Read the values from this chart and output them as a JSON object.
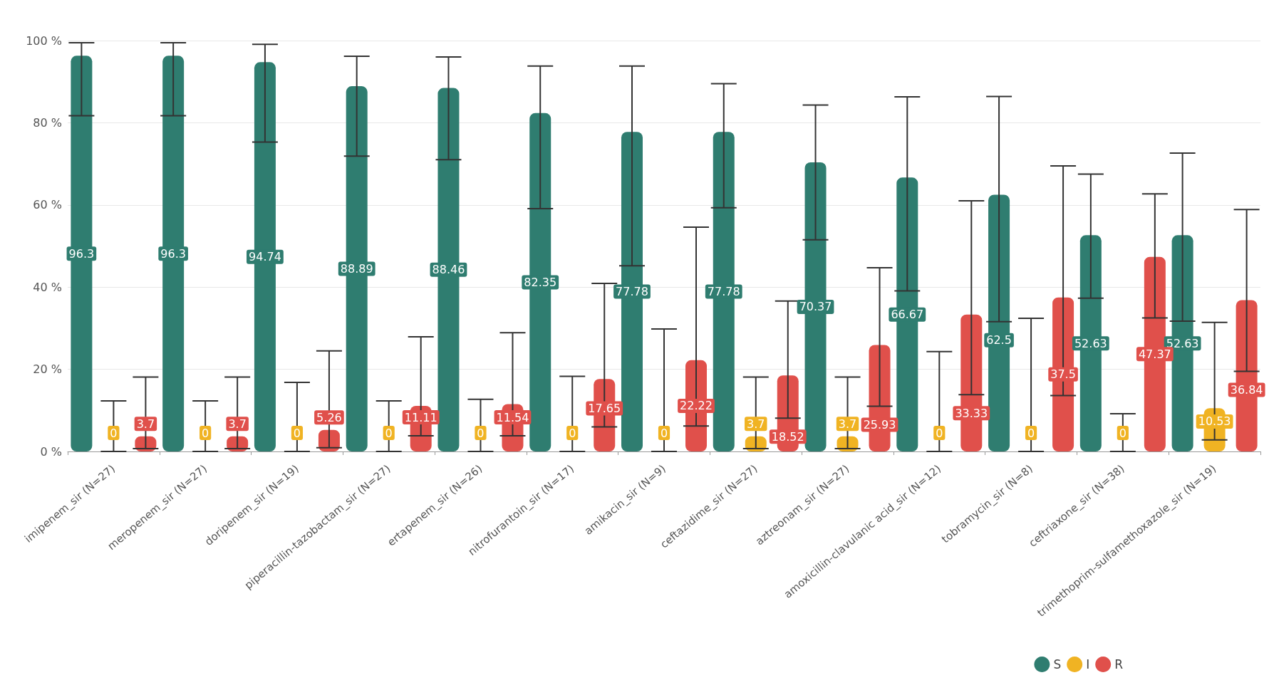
{
  "chart_data": {
    "type": "bar",
    "categories": [
      "imipenem_sir (N=27)",
      "meropenem_sir (N=27)",
      "doripenem_sir (N=19)",
      "piperacillin-tazobactam_sir (N=27)",
      "ertapenem_sir (N=26)",
      "nitrofurantoin_sir (N=17)",
      "amikacin_sir (N=9)",
      "ceftazidime_sir (N=27)",
      "aztreonam_sir (N=27)",
      "amoxicillin-clavulanic acid_sir (N=12)",
      "tobramycin_sir (N=8)",
      "ceftriaxone_sir (N=38)",
      "trimethoprim-sulfamethoxazole_sir (N=19)"
    ],
    "series": [
      {
        "name": "S",
        "color": "#2f7d70",
        "values": [
          96.3,
          96.3,
          94.74,
          88.89,
          88.46,
          82.35,
          77.78,
          77.78,
          70.37,
          66.67,
          62.5,
          52.63,
          52.63
        ],
        "errors": [
          [
            81.7,
            99.5
          ],
          [
            81.7,
            99.5
          ],
          [
            75.3,
            99.1
          ],
          [
            71.9,
            96.2
          ],
          [
            71.0,
            96.0
          ],
          [
            59.1,
            93.8
          ],
          [
            45.2,
            93.8
          ],
          [
            59.3,
            89.5
          ],
          [
            51.5,
            84.3
          ],
          [
            39.1,
            86.3
          ],
          [
            31.6,
            86.4
          ],
          [
            37.3,
            67.5
          ],
          [
            31.7,
            72.6
          ]
        ]
      },
      {
        "name": "I",
        "color": "#f0b323",
        "values": [
          0,
          0,
          0,
          0,
          0,
          0,
          0,
          3.7,
          3.7,
          0,
          0,
          0,
          10.53
        ],
        "errors": [
          [
            0,
            12.3
          ],
          [
            0,
            12.3
          ],
          [
            0,
            16.8
          ],
          [
            0,
            12.3
          ],
          [
            0,
            12.7
          ],
          [
            0,
            18.3
          ],
          [
            0,
            29.8
          ],
          [
            0.7,
            18.1
          ],
          [
            0.7,
            18.1
          ],
          [
            0,
            24.3
          ],
          [
            0,
            32.4
          ],
          [
            0,
            9.2
          ],
          [
            2.8,
            31.4
          ]
        ]
      },
      {
        "name": "R",
        "color": "#e0504b",
        "values": [
          3.7,
          3.7,
          5.26,
          11.11,
          11.54,
          17.65,
          22.22,
          18.52,
          25.93,
          33.33,
          37.5,
          47.37,
          36.84
        ],
        "errors": [
          [
            0.7,
            18.1
          ],
          [
            0.7,
            18.1
          ],
          [
            0.9,
            24.5
          ],
          [
            3.8,
            27.9
          ],
          [
            3.8,
            28.9
          ],
          [
            6.0,
            40.9
          ],
          [
            6.2,
            54.6
          ],
          [
            8.1,
            36.6
          ],
          [
            11,
            44.7
          ],
          [
            13.8,
            61.0
          ],
          [
            13.6,
            69.5
          ],
          [
            32.5,
            62.7
          ],
          [
            19.5,
            58.9
          ]
        ]
      }
    ],
    "ylim": [
      0,
      100
    ],
    "yticks": [
      {
        "value": 0,
        "label": "0 %"
      },
      {
        "value": 20,
        "label": "20 %"
      },
      {
        "value": 40,
        "label": "40 %"
      },
      {
        "value": 60,
        "label": "60 %"
      },
      {
        "value": 80,
        "label": "80 %"
      },
      {
        "value": 100,
        "label": "100 %"
      }
    ],
    "grid": "y",
    "legend": "bottom right",
    "data_labels": true
  }
}
